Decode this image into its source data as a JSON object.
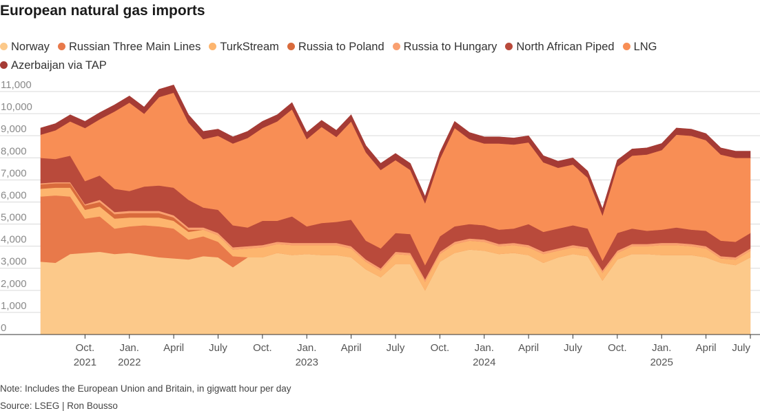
{
  "chart_data": {
    "type": "area",
    "stacked": true,
    "title": "European natural gas imports",
    "note": "Note: Includes the European Union and Britain, in gigwatt hour per day",
    "source": "Source: LSEG | Ron Bousso",
    "ylim": [
      0,
      11000
    ],
    "yticks": [
      0,
      1000,
      2000,
      3000,
      4000,
      5000,
      6000,
      7000,
      8000,
      9000,
      10000,
      11000
    ],
    "ytick_labels": [
      "0",
      "1,000",
      "2,000",
      "3,000",
      "4,000",
      "5,000",
      "6,000",
      "7,000",
      "8,000",
      "9,000",
      "10,000",
      "11,000"
    ],
    "grid": true,
    "legend_position": "top",
    "xticks": [
      {
        "x": "2021-10",
        "line1": "Oct.",
        "line2": "2021"
      },
      {
        "x": "2022-01",
        "line1": "Jan.",
        "line2": "2022"
      },
      {
        "x": "2022-04",
        "line1": "April",
        "line2": ""
      },
      {
        "x": "2022-07",
        "line1": "July",
        "line2": ""
      },
      {
        "x": "2022-10",
        "line1": "Oct.",
        "line2": ""
      },
      {
        "x": "2023-01",
        "line1": "Jan.",
        "line2": "2023"
      },
      {
        "x": "2023-04",
        "line1": "April",
        "line2": ""
      },
      {
        "x": "2023-07",
        "line1": "July",
        "line2": ""
      },
      {
        "x": "2023-10",
        "line1": "Oct.",
        "line2": ""
      },
      {
        "x": "2024-01",
        "line1": "Jan.",
        "line2": "2024"
      },
      {
        "x": "2024-04",
        "line1": "April",
        "line2": ""
      },
      {
        "x": "2024-07",
        "line1": "July",
        "line2": ""
      },
      {
        "x": "2024-10",
        "line1": "Oct.",
        "line2": ""
      },
      {
        "x": "2025-01",
        "line1": "Jan.",
        "line2": "2025"
      },
      {
        "x": "2025-04",
        "line1": "April",
        "line2": ""
      },
      {
        "x": "2025-07",
        "line1": "July",
        "line2": ""
      }
    ],
    "x": [
      "2021-07",
      "2021-08",
      "2021-09",
      "2021-10",
      "2021-11",
      "2021-12",
      "2022-01",
      "2022-02",
      "2022-03",
      "2022-04",
      "2022-05",
      "2022-06",
      "2022-07",
      "2022-08",
      "2022-09",
      "2022-10",
      "2022-11",
      "2022-12",
      "2023-01",
      "2023-02",
      "2023-03",
      "2023-04",
      "2023-05",
      "2023-06",
      "2023-07",
      "2023-08",
      "2023-09",
      "2023-10",
      "2023-11",
      "2023-12",
      "2024-01",
      "2024-02",
      "2024-03",
      "2024-04",
      "2024-05",
      "2024-06",
      "2024-07",
      "2024-08",
      "2024-09",
      "2024-10",
      "2024-11",
      "2024-12",
      "2025-01",
      "2025-02",
      "2025-03",
      "2025-04",
      "2025-05",
      "2025-06",
      "2025-07"
    ],
    "series": [
      {
        "name": "Norway",
        "color": "#fcc98a",
        "values": [
          3300,
          3250,
          3650,
          3700,
          3750,
          3650,
          3700,
          3600,
          3500,
          3450,
          3400,
          3550,
          3500,
          3050,
          3500,
          3500,
          3700,
          3600,
          3650,
          3600,
          3600,
          3500,
          2950,
          2600,
          3200,
          3200,
          2000,
          3300,
          3700,
          3850,
          3800,
          3650,
          3700,
          3600,
          3250,
          3500,
          3650,
          3550,
          2450,
          3400,
          3650,
          3650,
          3600,
          3600,
          3600,
          3500,
          3250,
          3150,
          3500
        ]
      },
      {
        "name": "Russian Three Main Lines",
        "color": "#e8794a",
        "values": [
          2950,
          3050,
          2600,
          1550,
          1600,
          1150,
          1200,
          1350,
          1400,
          1350,
          900,
          900,
          700,
          500,
          0,
          0,
          0,
          0,
          0,
          0,
          0,
          0,
          0,
          0,
          0,
          0,
          0,
          0,
          0,
          0,
          0,
          0,
          0,
          0,
          0,
          0,
          0,
          0,
          0,
          0,
          0,
          0,
          0,
          0,
          0,
          0,
          0,
          0,
          0
        ]
      },
      {
        "name": "TurkStream",
        "color": "#fdb56e",
        "values": [
          350,
          350,
          400,
          400,
          450,
          450,
          400,
          350,
          400,
          350,
          350,
          300,
          300,
          300,
          400,
          450,
          400,
          450,
          400,
          450,
          450,
          400,
          350,
          300,
          450,
          400,
          400,
          350,
          400,
          400,
          400,
          350,
          350,
          350,
          400,
          300,
          300,
          300,
          350,
          300,
          350,
          350,
          450,
          450,
          400,
          400,
          200,
          250,
          300
        ]
      },
      {
        "name": "Russia to Poland",
        "color": "#d96b3c",
        "values": [
          200,
          200,
          200,
          200,
          200,
          200,
          200,
          200,
          200,
          150,
          100,
          0,
          0,
          0,
          0,
          0,
          0,
          0,
          0,
          0,
          0,
          0,
          0,
          0,
          0,
          0,
          0,
          0,
          0,
          0,
          0,
          0,
          0,
          0,
          0,
          0,
          0,
          0,
          0,
          0,
          0,
          0,
          0,
          0,
          0,
          0,
          0,
          0,
          0
        ]
      },
      {
        "name": "Russia to Hungary",
        "color": "#f9a070",
        "values": [
          50,
          50,
          50,
          50,
          100,
          100,
          100,
          100,
          100,
          100,
          100,
          100,
          100,
          100,
          100,
          100,
          100,
          100,
          100,
          100,
          100,
          100,
          100,
          100,
          100,
          100,
          100,
          100,
          100,
          100,
          100,
          100,
          100,
          100,
          100,
          100,
          100,
          100,
          100,
          100,
          100,
          100,
          100,
          100,
          100,
          100,
          100,
          100,
          100
        ]
      },
      {
        "name": "North African Piped",
        "color": "#b94a3b",
        "values": [
          1150,
          1050,
          1200,
          1050,
          1100,
          1050,
          900,
          1100,
          1150,
          1250,
          1250,
          900,
          1050,
          1000,
          850,
          1100,
          950,
          1200,
          750,
          900,
          950,
          1200,
          850,
          900,
          850,
          850,
          650,
          700,
          700,
          650,
          650,
          650,
          650,
          950,
          900,
          900,
          900,
          850,
          450,
          800,
          700,
          600,
          600,
          700,
          650,
          700,
          700,
          700,
          700
        ]
      },
      {
        "name": "LNG",
        "color": "#f88e55",
        "values": [
          1050,
          1300,
          1550,
          2400,
          2550,
          3500,
          4000,
          3300,
          4000,
          4300,
          3500,
          3100,
          3350,
          3700,
          4050,
          4200,
          4500,
          4850,
          3950,
          4350,
          3850,
          4450,
          4000,
          3550,
          3300,
          2900,
          2800,
          3500,
          4450,
          3850,
          3700,
          3900,
          3800,
          3700,
          3150,
          2750,
          2750,
          2300,
          2050,
          3000,
          3300,
          3450,
          3600,
          4200,
          4250,
          4100,
          3900,
          3800,
          3400
        ]
      },
      {
        "name": "Azerbaijan via TAP",
        "color": "#a53b35",
        "values": [
          300,
          300,
          300,
          300,
          300,
          300,
          300,
          300,
          350,
          350,
          350,
          350,
          300,
          300,
          300,
          300,
          300,
          300,
          300,
          300,
          300,
          300,
          300,
          300,
          300,
          300,
          300,
          300,
          300,
          300,
          300,
          300,
          300,
          300,
          300,
          300,
          300,
          300,
          300,
          300,
          300,
          300,
          300,
          300,
          300,
          300,
          300,
          300,
          300
        ]
      }
    ]
  }
}
